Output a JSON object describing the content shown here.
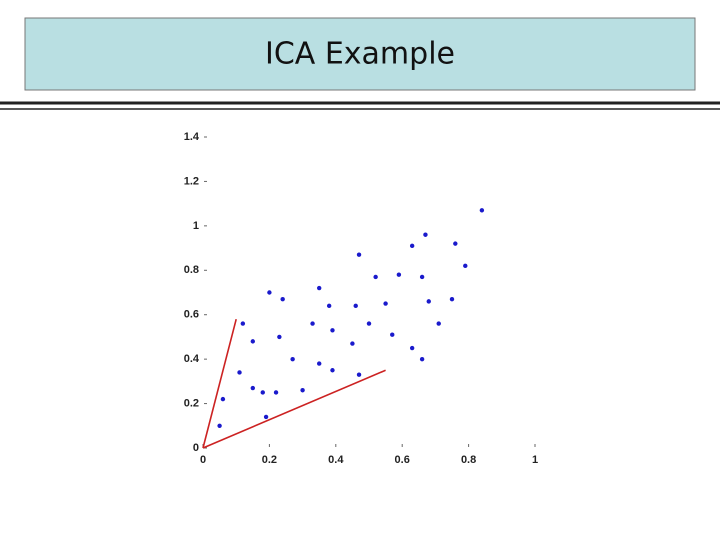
{
  "chart_data": {
    "type": "scatter",
    "title": "ICA Example",
    "xlim": [
      0,
      1
    ],
    "ylim": [
      0,
      1.4
    ],
    "xticks": [
      0,
      0.2,
      0.4,
      0.6,
      0.8,
      1
    ],
    "yticks": [
      0,
      0.2,
      0.4,
      0.6,
      0.8,
      1,
      1.2,
      1.4
    ],
    "series": [
      {
        "type": "scatter",
        "color": "#1a1acc",
        "x": [
          0.05,
          0.11,
          0.12,
          0.2,
          0.18,
          0.23,
          0.19,
          0.27,
          0.35,
          0.3,
          0.38,
          0.39,
          0.47,
          0.39,
          0.45,
          0.52,
          0.47,
          0.55,
          0.63,
          0.57,
          0.66,
          0.63,
          0.68,
          0.76,
          0.71,
          0.79,
          0.84,
          0.15,
          0.15,
          0.33,
          0.5,
          0.67,
          0.66,
          0.22,
          0.46,
          0.75,
          0.35,
          0.59,
          0.24,
          0.06
        ],
        "values": [
          0.1,
          0.34,
          0.56,
          0.7,
          0.25,
          0.5,
          0.14,
          0.4,
          0.72,
          0.26,
          0.64,
          0.53,
          0.87,
          0.35,
          0.47,
          0.77,
          0.33,
          0.65,
          0.91,
          0.51,
          0.77,
          0.45,
          0.66,
          0.92,
          0.56,
          0.82,
          1.07,
          0.48,
          0.27,
          0.56,
          0.56,
          0.96,
          0.4,
          0.25,
          0.64,
          0.67,
          0.38,
          0.78,
          0.67,
          0.22
        ]
      },
      {
        "type": "line",
        "color": "#cc2222",
        "x": [
          0,
          0.1
        ],
        "values": [
          0,
          0.58
        ]
      },
      {
        "type": "line",
        "color": "#cc2222",
        "x": [
          0,
          0.55
        ],
        "values": [
          0,
          0.35
        ]
      }
    ]
  }
}
